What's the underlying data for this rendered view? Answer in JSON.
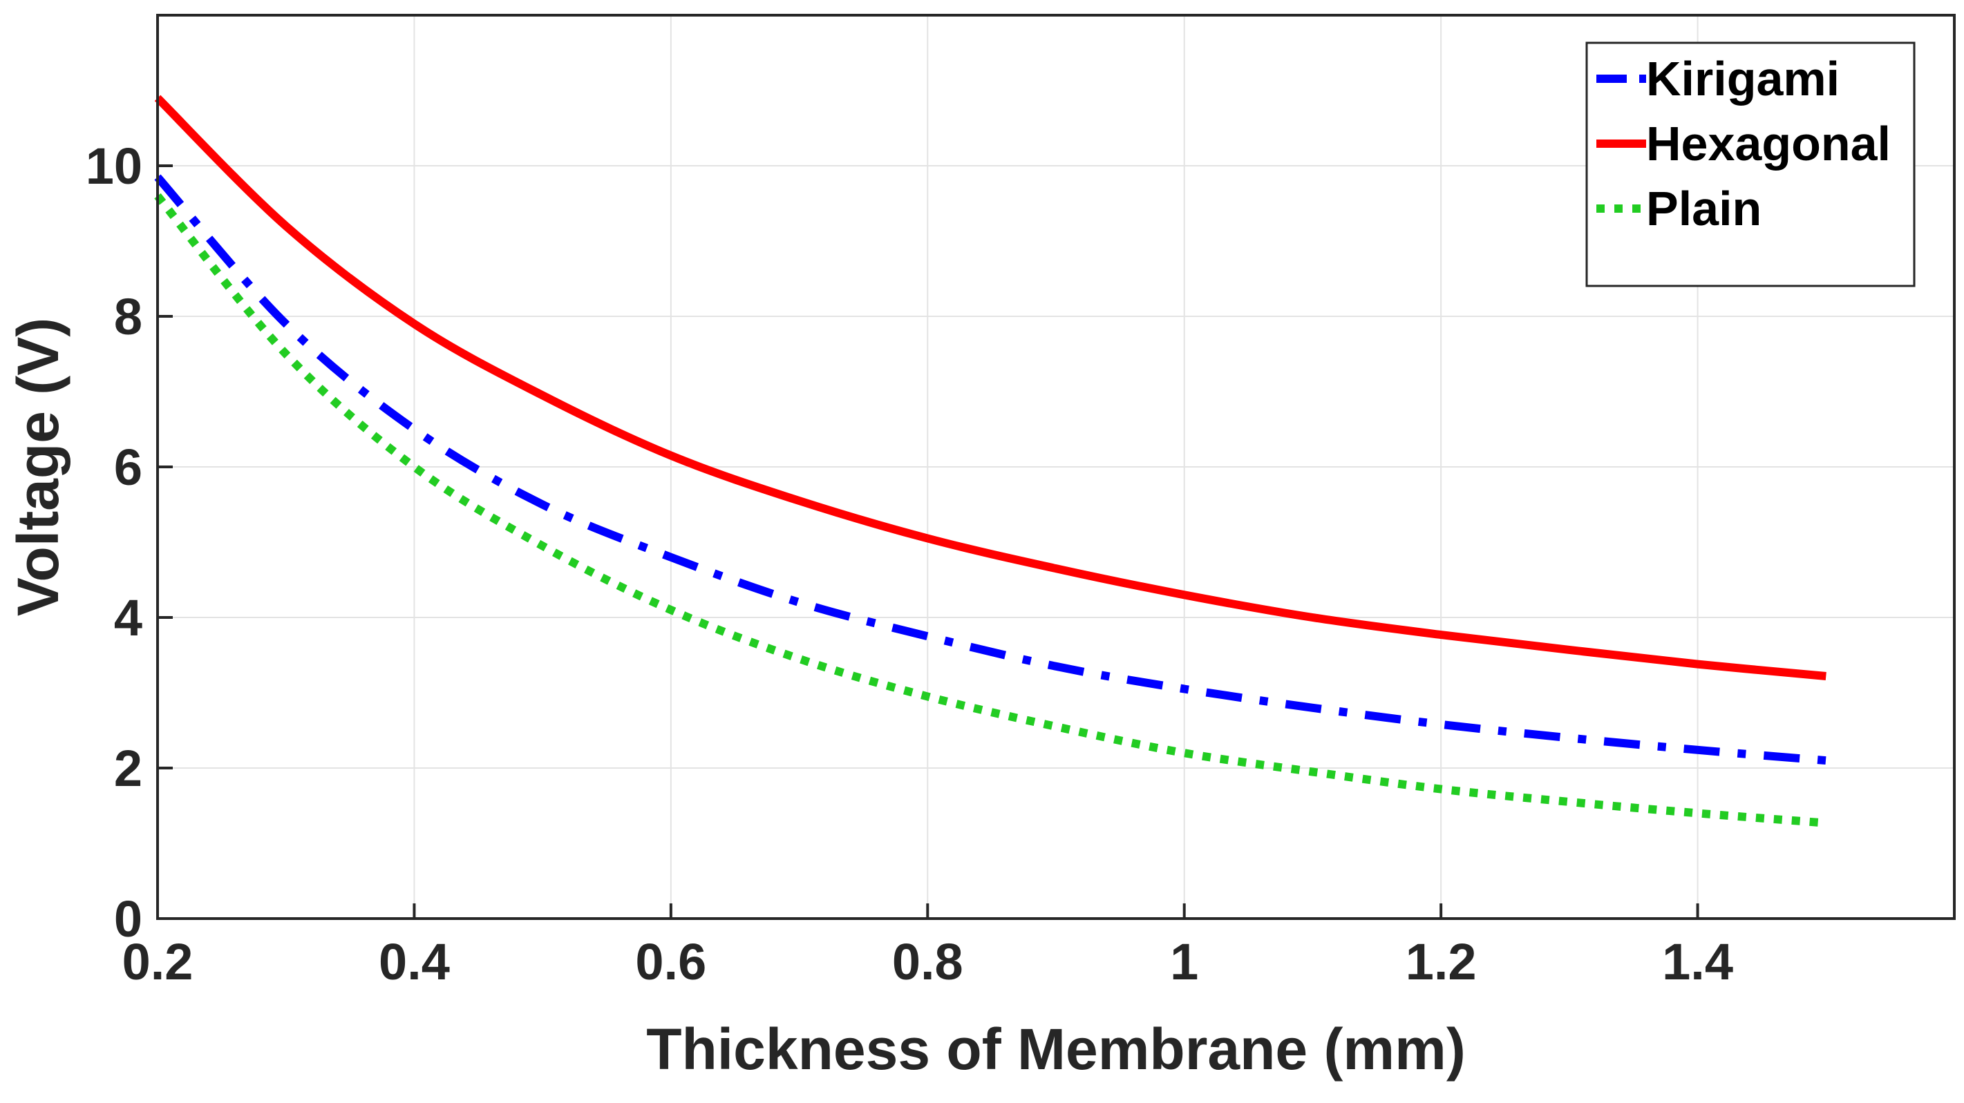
{
  "chart_data": {
    "type": "line",
    "title": "",
    "xlabel": "Thickness of Membrane (mm)",
    "ylabel": "Voltage (V)",
    "xlim": [
      0.2,
      1.6
    ],
    "ylim": [
      0,
      12
    ],
    "xticks": [
      0.2,
      0.4,
      0.6,
      0.8,
      1.0,
      1.2,
      1.4
    ],
    "xtick_labels": [
      "0.2",
      "0.4",
      "0.6",
      "0.8",
      "1",
      "1.2",
      "1.4"
    ],
    "yticks": [
      0,
      2,
      4,
      6,
      8,
      10
    ],
    "ytick_labels": [
      "0",
      "2",
      "4",
      "6",
      "8",
      "10"
    ],
    "grid": true,
    "legend_position": "top-right",
    "x": [
      0.2,
      0.3,
      0.4,
      0.5,
      0.6,
      0.7,
      0.8,
      0.9,
      1.0,
      1.1,
      1.2,
      1.3,
      1.4,
      1.5
    ],
    "series": [
      {
        "name": "Kirigami",
        "color": "#0000FF",
        "style": "dashdot",
        "values": [
          9.85,
          7.9,
          6.5,
          5.5,
          4.8,
          4.2,
          3.75,
          3.35,
          3.05,
          2.8,
          2.58,
          2.4,
          2.24,
          2.1
        ]
      },
      {
        "name": "Hexagonal",
        "color": "#FF0000",
        "style": "solid",
        "values": [
          10.9,
          9.2,
          7.9,
          6.95,
          6.15,
          5.55,
          5.05,
          4.65,
          4.3,
          4.0,
          3.77,
          3.57,
          3.38,
          3.22
        ]
      },
      {
        "name": "Plain",
        "color": "#22CC22",
        "style": "dotted",
        "values": [
          9.6,
          7.5,
          6.0,
          4.95,
          4.1,
          3.45,
          2.95,
          2.55,
          2.2,
          1.95,
          1.72,
          1.55,
          1.4,
          1.27
        ]
      }
    ]
  }
}
